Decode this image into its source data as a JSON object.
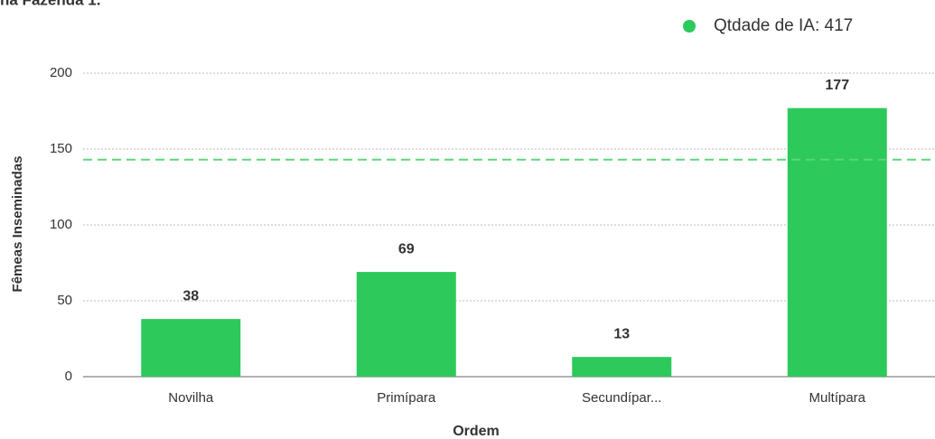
{
  "chart_data": {
    "type": "bar",
    "title": "na Fazenda 1.",
    "legend": "Qtdade de IA: 417",
    "x_label": "Ordem",
    "y_label": "Fêmeas Inseminadas",
    "categories": [
      "Novilha",
      "Primípara",
      "Secundípar...",
      "Multípara"
    ],
    "values": [
      38,
      69,
      13,
      177
    ],
    "color": "#2dc95a",
    "reference_line": 143,
    "reference_color": "#5dd57b",
    "ylim": [
      0,
      200
    ],
    "yticks": [
      0,
      50,
      100,
      150,
      200
    ],
    "grid": true
  }
}
